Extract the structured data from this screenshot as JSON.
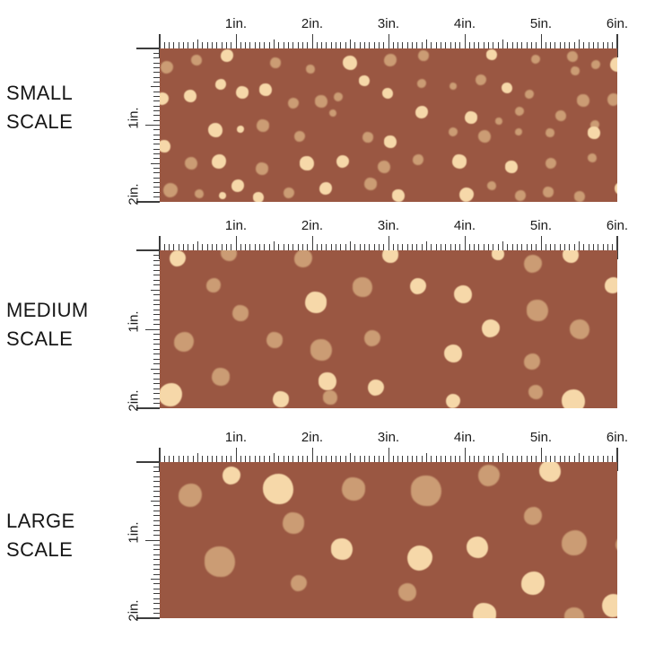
{
  "colors": {
    "background": "#ffffff",
    "fabric_brown": "#9A5742",
    "dot_cream": "#F6D8A9",
    "dot_tan": "#CB9C74",
    "ruler_tick": "#3d3d3d",
    "label_text": "#161616"
  },
  "ruler": {
    "horizontal_labels": [
      "1in.",
      "2in.",
      "3in.",
      "4in.",
      "5in.",
      "6in."
    ],
    "vertical_labels": [
      "1in.",
      "2in."
    ],
    "inches_horizontal": 6,
    "inches_vertical": 2,
    "divisions_per_inch": 16
  },
  "rows": [
    {
      "id": "small",
      "label_line1": "SMALL",
      "label_line2": "SCALE",
      "dots": [
        [
          8,
          21,
          7,
          "t"
        ],
        [
          41,
          13,
          6,
          "t"
        ],
        [
          75,
          8,
          7,
          "c"
        ],
        [
          129,
          16,
          6,
          "t"
        ],
        [
          168,
          23,
          5,
          "t"
        ],
        [
          3,
          56,
          7,
          "c"
        ],
        [
          34,
          53,
          7,
          "c"
        ],
        [
          68,
          40,
          6,
          "c"
        ],
        [
          92,
          49,
          7,
          "c"
        ],
        [
          118,
          46,
          7,
          "c"
        ],
        [
          149,
          61,
          6,
          "t"
        ],
        [
          62,
          91,
          8,
          "c"
        ],
        [
          90,
          90,
          4,
          "c"
        ],
        [
          115,
          86,
          7,
          "t"
        ],
        [
          5,
          109,
          7,
          "c"
        ],
        [
          156,
          98,
          6,
          "t"
        ],
        [
          35,
          128,
          7,
          "t"
        ],
        [
          66,
          126,
          8,
          "c"
        ],
        [
          114,
          134,
          7,
          "t"
        ],
        [
          164,
          128,
          8,
          "c"
        ],
        [
          12,
          158,
          8,
          "t"
        ],
        [
          44,
          162,
          5,
          "t"
        ],
        [
          87,
          153,
          7,
          "c"
        ],
        [
          70,
          164,
          4,
          "c"
        ],
        [
          110,
          166,
          6,
          "c"
        ],
        [
          144,
          161,
          6,
          "t"
        ],
        [
          212,
          16,
          8,
          "c"
        ],
        [
          257,
          13,
          7,
          "t"
        ],
        [
          294,
          8,
          6,
          "t"
        ],
        [
          370,
          7,
          6,
          "c"
        ],
        [
          419,
          12,
          5,
          "t"
        ],
        [
          460,
          9,
          6,
          "t"
        ],
        [
          486,
          18,
          5,
          "t"
        ],
        [
          510,
          18,
          8,
          "c"
        ],
        [
          228,
          36,
          6,
          "c"
        ],
        [
          358,
          35,
          6,
          "t"
        ],
        [
          387,
          44,
          6,
          "c"
        ],
        [
          412,
          51,
          5,
          "t"
        ],
        [
          463,
          25,
          5,
          "t"
        ],
        [
          180,
          59,
          7,
          "t"
        ],
        [
          199,
          54,
          5,
          "t"
        ],
        [
          254,
          50,
          6,
          "c"
        ],
        [
          292,
          39,
          5,
          "t"
        ],
        [
          327,
          42,
          4,
          "t"
        ],
        [
          472,
          58,
          7,
          "t"
        ],
        [
          506,
          57,
          7,
          "t"
        ],
        [
          193,
          72,
          4,
          "t"
        ],
        [
          292,
          71,
          7,
          "c"
        ],
        [
          347,
          77,
          7,
          "c"
        ],
        [
          378,
          81,
          4,
          "t"
        ],
        [
          401,
          70,
          5,
          "t"
        ],
        [
          447,
          75,
          6,
          "t"
        ],
        [
          485,
          85,
          5,
          "t"
        ],
        [
          232,
          99,
          6,
          "t"
        ],
        [
          257,
          104,
          7,
          "c"
        ],
        [
          327,
          93,
          5,
          "t"
        ],
        [
          362,
          98,
          7,
          "t"
        ],
        [
          400,
          93,
          4,
          "t"
        ],
        [
          435,
          94,
          5,
          "t"
        ],
        [
          484,
          94,
          7,
          "c"
        ],
        [
          204,
          126,
          7,
          "c"
        ],
        [
          250,
          132,
          7,
          "t"
        ],
        [
          288,
          124,
          6,
          "t"
        ],
        [
          334,
          126,
          8,
          "c"
        ],
        [
          392,
          132,
          7,
          "c"
        ],
        [
          436,
          128,
          6,
          "t"
        ],
        [
          482,
          122,
          5,
          "t"
        ],
        [
          185,
          156,
          7,
          "c"
        ],
        [
          235,
          151,
          7,
          "t"
        ],
        [
          266,
          164,
          7,
          "c"
        ],
        [
          342,
          163,
          8,
          "c"
        ],
        [
          370,
          153,
          5,
          "t"
        ],
        [
          402,
          164,
          6,
          "t"
        ],
        [
          433,
          160,
          6,
          "t"
        ],
        [
          468,
          165,
          6,
          "t"
        ],
        [
          514,
          156,
          7,
          "c"
        ]
      ]
    },
    {
      "id": "medium",
      "label_line1": "MEDIUM",
      "label_line2": "SCALE",
      "dots": [
        [
          20,
          9,
          9,
          "c"
        ],
        [
          77,
          3,
          9,
          "t"
        ],
        [
          160,
          9,
          10,
          "t"
        ],
        [
          257,
          5,
          9,
          "c"
        ],
        [
          377,
          4,
          7,
          "c"
        ],
        [
          416,
          15,
          10,
          "t"
        ],
        [
          458,
          5,
          9,
          "c"
        ],
        [
          60,
          39,
          8,
          "t"
        ],
        [
          174,
          58,
          12,
          "c"
        ],
        [
          226,
          41,
          11,
          "t"
        ],
        [
          288,
          40,
          9,
          "c"
        ],
        [
          338,
          49,
          10,
          "c"
        ],
        [
          505,
          39,
          9,
          "c"
        ],
        [
          90,
          70,
          9,
          "t"
        ],
        [
          421,
          67,
          12,
          "t"
        ],
        [
          369,
          87,
          10,
          "c"
        ],
        [
          468,
          88,
          11,
          "t"
        ],
        [
          27,
          102,
          11,
          "t"
        ],
        [
          128,
          100,
          9,
          "t"
        ],
        [
          180,
          111,
          12,
          "t"
        ],
        [
          237,
          98,
          9,
          "t"
        ],
        [
          327,
          115,
          10,
          "c"
        ],
        [
          415,
          124,
          9,
          "t"
        ],
        [
          68,
          141,
          10,
          "t"
        ],
        [
          187,
          146,
          10,
          "c"
        ],
        [
          241,
          153,
          9,
          "c"
        ],
        [
          419,
          158,
          8,
          "t"
        ],
        [
          12,
          161,
          13,
          "c"
        ],
        [
          135,
          166,
          9,
          "c"
        ],
        [
          190,
          164,
          8,
          "t"
        ],
        [
          327,
          168,
          8,
          "c"
        ],
        [
          461,
          168,
          13,
          "c"
        ]
      ]
    },
    {
      "id": "large",
      "label_line1": "LARGE",
      "label_line2": "SCALE",
      "dots": [
        [
          80,
          15,
          10,
          "c"
        ],
        [
          132,
          30,
          17,
          "c"
        ],
        [
          34,
          37,
          13,
          "t"
        ],
        [
          216,
          30,
          13,
          "t"
        ],
        [
          297,
          32,
          17,
          "t"
        ],
        [
          367,
          15,
          12,
          "t"
        ],
        [
          435,
          10,
          12,
          "c"
        ],
        [
          416,
          60,
          10,
          "t"
        ],
        [
          149,
          68,
          12,
          "t"
        ],
        [
          203,
          97,
          12,
          "c"
        ],
        [
          290,
          107,
          14,
          "c"
        ],
        [
          354,
          95,
          12,
          "c"
        ],
        [
          462,
          90,
          14,
          "t"
        ],
        [
          517,
          92,
          9,
          "t"
        ],
        [
          67,
          111,
          17,
          "t"
        ],
        [
          155,
          135,
          9,
          "t"
        ],
        [
          276,
          145,
          10,
          "t"
        ],
        [
          416,
          135,
          13,
          "c"
        ],
        [
          362,
          170,
          13,
          "c"
        ],
        [
          462,
          173,
          11,
          "t"
        ],
        [
          506,
          160,
          13,
          "c"
        ]
      ]
    }
  ]
}
